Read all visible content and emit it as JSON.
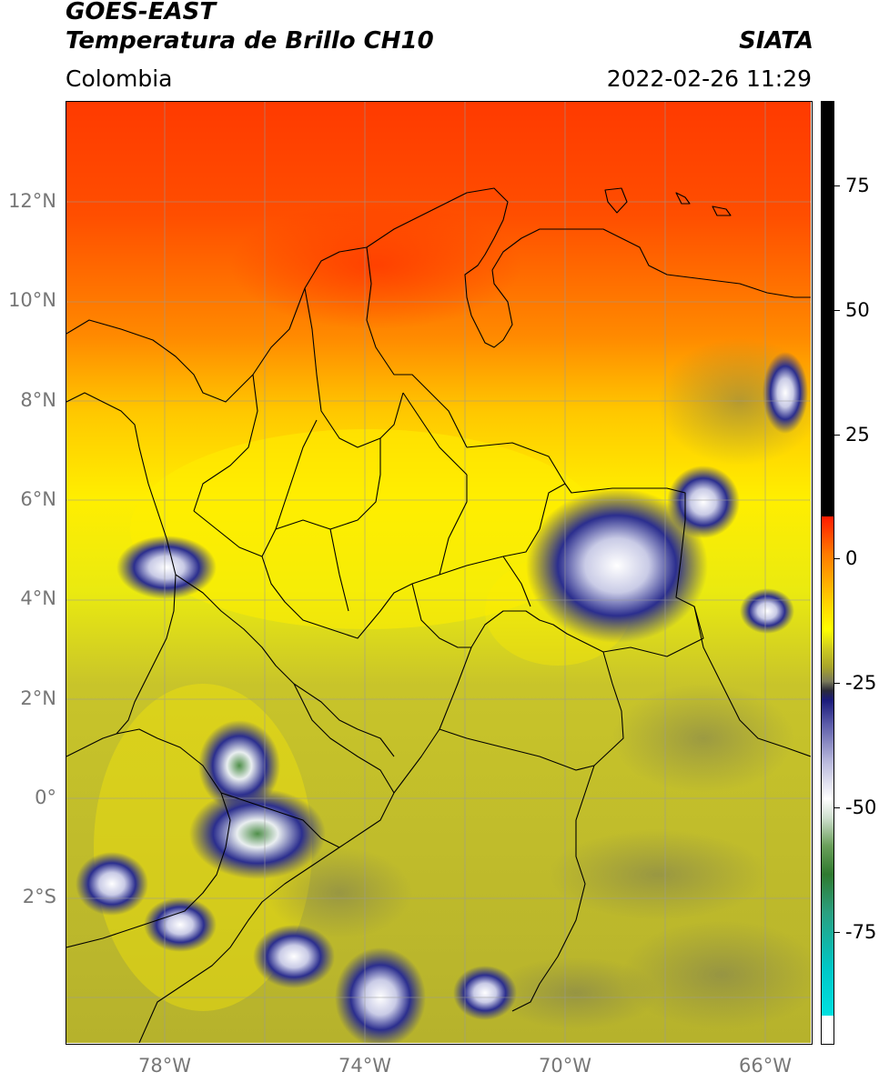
{
  "header": {
    "satellite": "GOES-EAST",
    "product": "Temperatura de Brillo CH10",
    "org": "SIATA",
    "region": "Colombia",
    "timestamp": "2022-02-26 11:29"
  },
  "map": {
    "lat_labels": [
      "12°N",
      "10°N",
      "8°N",
      "6°N",
      "4°N",
      "2°N",
      "0°",
      "2°S"
    ],
    "lon_labels": [
      "78°W",
      "74°W",
      "70°W",
      "66°W"
    ],
    "gridlines": true
  },
  "colorbar": {
    "tick_labels": [
      "75",
      "50",
      "25",
      "0",
      "-25",
      "-50",
      "-75"
    ],
    "unit": "",
    "colors": {
      "warm_end": "#000000",
      "hot": "#ff2a00",
      "mid": "#ffff00",
      "olive": "#b6b22c",
      "cold": "#1a1a7a",
      "white": "#ffffff",
      "green": "#2f7a2f",
      "cyan": "#00d8d8"
    }
  }
}
